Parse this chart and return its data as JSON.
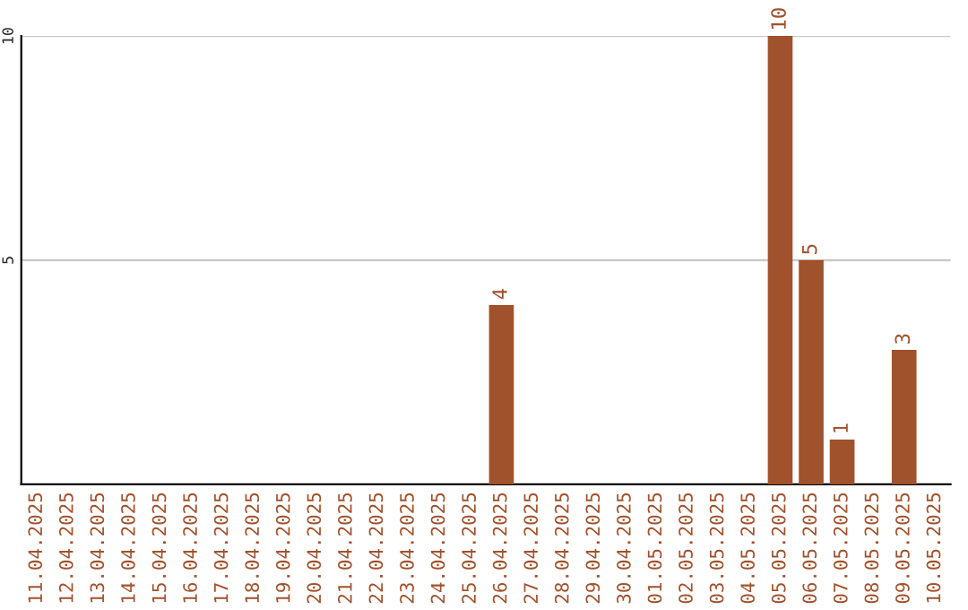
{
  "chart_data": {
    "type": "bar",
    "categories": [
      "11.04.2025",
      "12.04.2025",
      "13.04.2025",
      "14.04.2025",
      "15.04.2025",
      "16.04.2025",
      "17.04.2025",
      "18.04.2025",
      "19.04.2025",
      "20.04.2025",
      "21.04.2025",
      "22.04.2025",
      "23.04.2025",
      "24.04.2025",
      "25.04.2025",
      "26.04.2025",
      "27.04.2025",
      "28.04.2025",
      "29.04.2025",
      "30.04.2025",
      "01.05.2025",
      "02.05.2025",
      "03.05.2025",
      "04.05.2025",
      "05.05.2025",
      "06.05.2025",
      "07.05.2025",
      "08.05.2025",
      "09.05.2025",
      "10.05.2025"
    ],
    "values": [
      0,
      0,
      0,
      0,
      0,
      0,
      0,
      0,
      0,
      0,
      0,
      0,
      0,
      0,
      0,
      4,
      0,
      0,
      0,
      0,
      0,
      0,
      0,
      0,
      10,
      5,
      1,
      0,
      3,
      0
    ],
    "value_labels": [
      null,
      null,
      null,
      null,
      null,
      null,
      null,
      null,
      null,
      null,
      null,
      null,
      null,
      null,
      null,
      "4",
      null,
      null,
      null,
      null,
      null,
      null,
      null,
      null,
      "10",
      "5",
      "1",
      null,
      "3",
      null
    ],
    "color": "#a0522d",
    "ylim": [
      0,
      10
    ],
    "yticks": [
      5,
      10
    ],
    "grid": "y"
  }
}
